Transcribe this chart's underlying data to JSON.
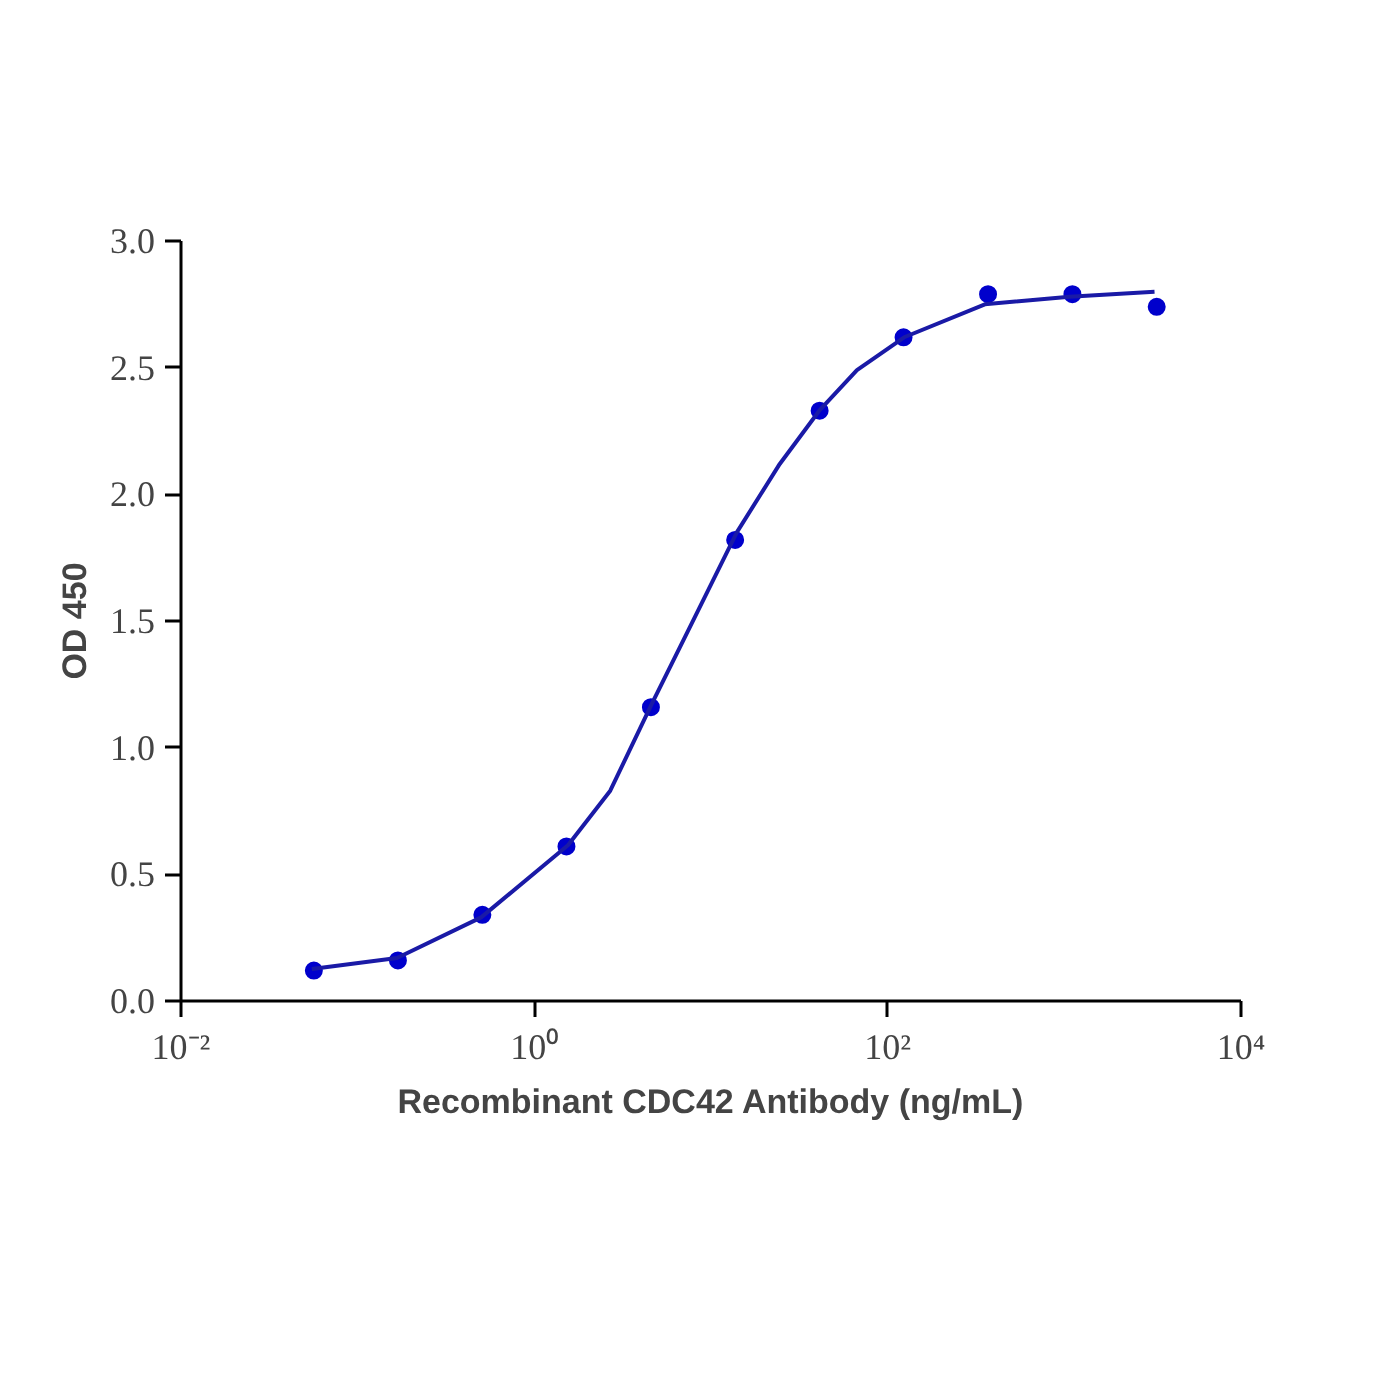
{
  "chart_data": {
    "type": "scatter",
    "xlabel": "Recombinant CDC42 Antibody (ng/mL)",
    "ylabel": "OD 450",
    "log": "x",
    "grid": false,
    "marker": "circle",
    "xlim": [
      0.01,
      10000
    ],
    "xticks": [
      {
        "value": 0.01,
        "label": "10⁻²"
      },
      {
        "value": 1,
        "label": "10⁰"
      },
      {
        "value": 100,
        "label": "10²"
      },
      {
        "value": 10000,
        "label": "10⁴"
      }
    ],
    "ylim": [
      0,
      3
    ],
    "yticks": [
      {
        "value": 0,
        "label": "0.0"
      },
      {
        "value": 0.5,
        "label": "0.5"
      },
      {
        "value": 1,
        "label": "1.0"
      },
      {
        "value": 1.5,
        "label": "1.5"
      },
      {
        "value": 2,
        "label": "2.0"
      },
      {
        "value": 2.5,
        "label": "2.5"
      },
      {
        "value": 3,
        "label": "3.0"
      }
    ],
    "series": [
      {
        "color": "#0000cc",
        "x": [
          0.0565,
          0.169,
          0.508,
          1.52,
          4.57,
          13.7,
          41.2,
          123,
          370,
          1111,
          3333
        ],
        "values": [
          0.12,
          0.16,
          0.34,
          0.61,
          1.16,
          1.82,
          2.33,
          2.62,
          2.79,
          2.79,
          2.74
        ]
      },
      {
        "type": "line",
        "color": "#1a1aa6",
        "line_style": "solid",
        "marker": "none",
        "x": [
          0.055,
          0.167,
          0.5,
          1.55,
          2.69,
          4.6,
          7.4,
          14,
          24.5,
          41,
          67,
          124,
          355,
          1070,
          3240
        ],
        "values": [
          0.126,
          0.17,
          0.33,
          0.615,
          0.83,
          1.17,
          1.46,
          1.85,
          2.12,
          2.33,
          2.49,
          2.62,
          2.75,
          2.78,
          2.8
        ]
      }
    ]
  }
}
